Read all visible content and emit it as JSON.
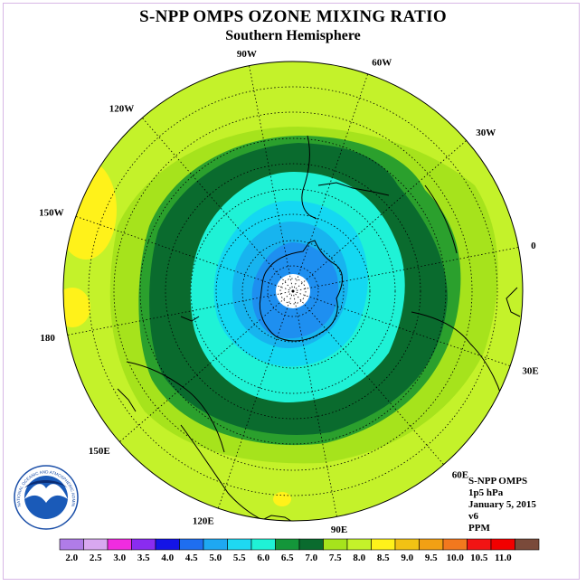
{
  "header": {
    "title": "S-NPP OMPS OZONE MIXING RATIO",
    "subtitle": "Southern Hemisphere"
  },
  "map": {
    "meridians": [
      {
        "label": "0",
        "lon": 0
      },
      {
        "label": "30E",
        "lon": 30
      },
      {
        "label": "60E",
        "lon": 60
      },
      {
        "label": "90E",
        "lon": 90
      },
      {
        "label": "120E",
        "lon": 120
      },
      {
        "label": "150E",
        "lon": 150
      },
      {
        "label": "180",
        "lon": 180
      },
      {
        "label": "150W",
        "lon": -150
      },
      {
        "label": "120W",
        "lon": -120
      },
      {
        "label": "90W",
        "lon": -90
      },
      {
        "label": "60W",
        "lon": -60
      },
      {
        "label": "30W",
        "lon": -30
      }
    ],
    "contour_colors": {
      "background": "#c4f22a",
      "band_7_5": "#a6e31c",
      "band_7_0": "#2ba02d",
      "band_6_5": "#0a6b2e",
      "band_6_0": "#1ff2d6",
      "band_5_5": "#14d8f2",
      "band_5_0": "#17b4ef",
      "band_4_5": "#1e8ff0",
      "high": "#fff21a"
    }
  },
  "logo": {
    "text": "NOAA",
    "ring_text": "NATIONAL OCEANIC AND ATMOSPHERIC ADMINISTRATION"
  },
  "info": {
    "instrument": "S-NPP OMPS",
    "level": "1p5 hPa",
    "date": "January 5, 2015",
    "version": "v6",
    "units": "PPM"
  },
  "colorbar": {
    "labels": [
      "2.0",
      "2.5",
      "3.0",
      "3.5",
      "4.0",
      "4.5",
      "5.0",
      "5.5",
      "6.0",
      "6.5",
      "7.0",
      "7.5",
      "8.0",
      "8.5",
      "9.0",
      "9.5",
      "10.0",
      "10.5",
      "11.0"
    ],
    "colors": [
      "#b07ce8",
      "#d8a8f0",
      "#f02ce0",
      "#8a2cf0",
      "#1414e6",
      "#1e6ef0",
      "#1ea8f2",
      "#1ed8f2",
      "#1ff2d6",
      "#14963a",
      "#0a6b2e",
      "#a6e31c",
      "#c4f22a",
      "#fff21a",
      "#f2c214",
      "#f2a014",
      "#f2781e",
      "#f21414",
      "#f20000",
      "#7a4a3a"
    ]
  }
}
